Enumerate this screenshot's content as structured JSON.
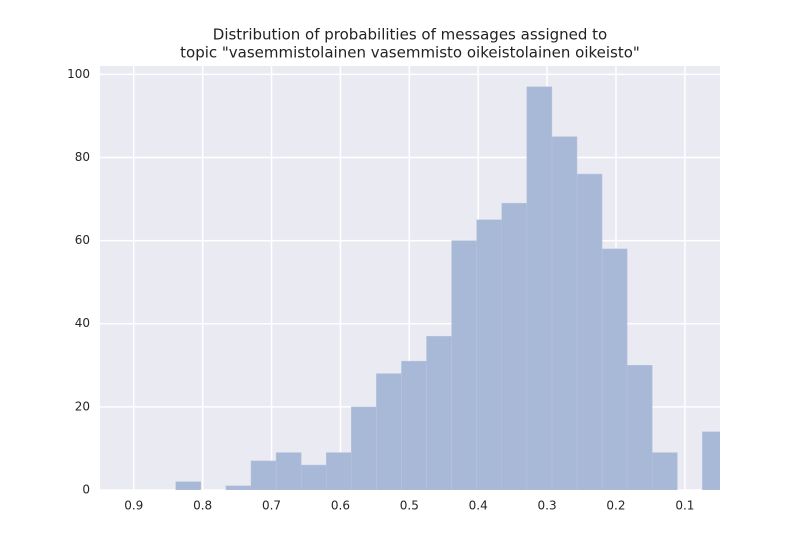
{
  "chart_data": {
    "type": "histogram",
    "title": [
      "Distribution of probabilities of messages assigned to",
      "topic \"vasemmistolainen vasemmisto oikeistolainen oikeisto\""
    ],
    "bins": [
      0.0382,
      0.0746,
      0.111,
      0.1474,
      0.1838,
      0.2202,
      0.2566,
      0.293,
      0.3294,
      0.3658,
      0.4022,
      0.4386,
      0.475,
      0.5114,
      0.5478,
      0.5842,
      0.6206,
      0.657,
      0.6934,
      0.7298,
      0.7662,
      0.8026,
      0.839
    ],
    "counts": [
      14,
      0,
      9,
      30,
      58,
      76,
      85,
      97,
      69,
      65,
      60,
      37,
      31,
      28,
      20,
      9,
      6,
      9,
      7,
      1,
      0,
      2
    ],
    "color": "#a8b8d7",
    "xlim": [
      0.949,
      0.049
    ],
    "ylim": [
      0,
      102
    ],
    "xticks": [
      0.9,
      0.8,
      0.7,
      0.6,
      0.5,
      0.4,
      0.3,
      0.2,
      0.1
    ],
    "yticks": [
      0,
      20,
      40,
      60,
      80,
      100
    ],
    "grid": true
  }
}
